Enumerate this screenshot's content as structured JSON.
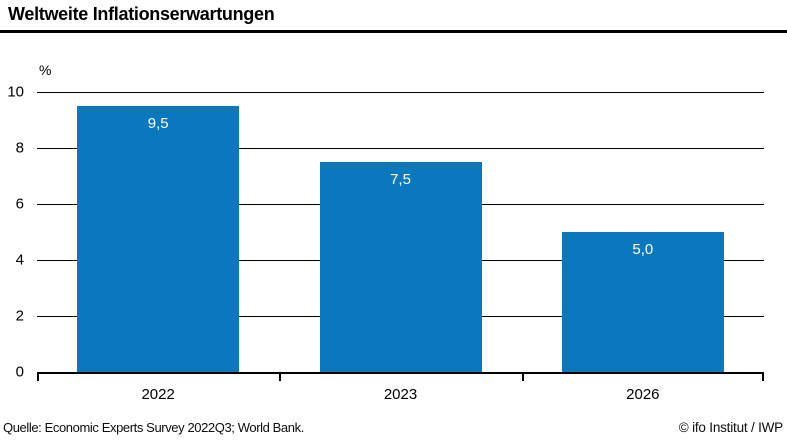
{
  "header": {
    "title": "Weltweite Inflationserwartungen"
  },
  "chart_data": {
    "type": "bar",
    "title": "Weltweite Inflationserwartungen",
    "categories": [
      "2022",
      "2023",
      "2026"
    ],
    "values": [
      9.5,
      7.5,
      5.0
    ],
    "value_labels": [
      "9,5",
      "7,5",
      "5,0"
    ],
    "unit_label": "%",
    "xlabel": "",
    "ylabel": "%",
    "ylim": [
      0,
      10
    ],
    "yticks": [
      0,
      2,
      4,
      6,
      8,
      10
    ],
    "grid": true,
    "legend": "none",
    "bar_color": "#0b77bd",
    "bar_label_color": "#ffffff",
    "axis_color": "#000000"
  },
  "footer": {
    "source": "Quelle: Economic Experts Survey 2022Q3; World Bank.",
    "credit": "© ifo Institut / IWP"
  }
}
